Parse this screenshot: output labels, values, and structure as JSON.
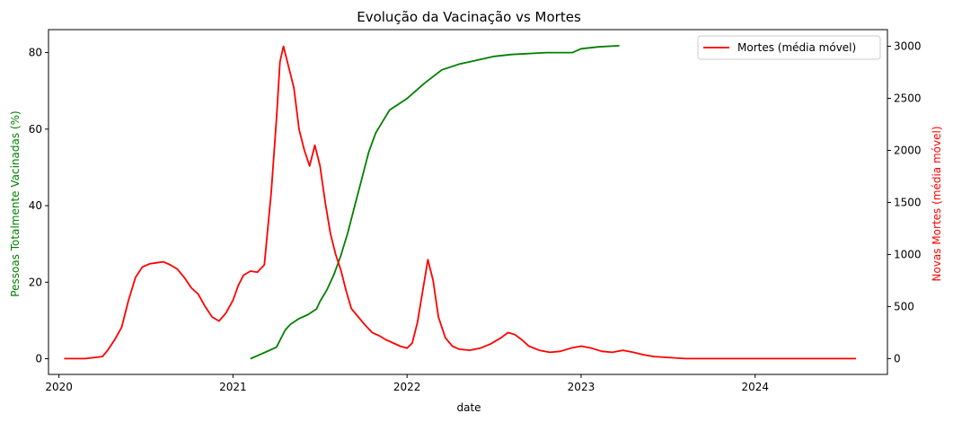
{
  "chart_data": {
    "type": "line",
    "title": "Evolução da Vacinação vs Mortes",
    "xlabel": "date",
    "ylabel_left": "Pessoas Totalmente Vacinadas (%)",
    "ylabel_right": "Novas Mortes (média móvel)",
    "xlim": [
      2019.94,
      2024.76
    ],
    "ylim_left": [
      -4.1,
      86
    ],
    "ylim_right": [
      -152,
      3160
    ],
    "x_ticks": [
      2020,
      2021,
      2022,
      2023,
      2024
    ],
    "x_tick_labels": [
      "2020",
      "2021",
      "2022",
      "2023",
      "2024"
    ],
    "y_left_ticks": [
      0,
      20,
      40,
      60,
      80
    ],
    "y_right_ticks": [
      0,
      500,
      1000,
      1500,
      2000,
      2500,
      3000
    ],
    "grid": false,
    "legend": {
      "position": "top-right",
      "entries": [
        "Mortes (média móvel)"
      ]
    },
    "series": [
      {
        "name": "Pessoas Totalmente Vacinadas (%)",
        "axis": "left",
        "color": "#008000",
        "x": [
          2021.1,
          2021.15,
          2021.2,
          2021.25,
          2021.3,
          2021.33,
          2021.38,
          2021.43,
          2021.48,
          2021.5,
          2021.54,
          2021.58,
          2021.62,
          2021.66,
          2021.7,
          2021.74,
          2021.78,
          2021.82,
          2021.86,
          2021.9,
          2021.95,
          2022.0,
          2022.05,
          2022.1,
          2022.2,
          2022.3,
          2022.4,
          2022.5,
          2022.6,
          2022.8,
          2022.95,
          2023.0,
          2023.1,
          2023.22
        ],
        "y": [
          0,
          1,
          2,
          3,
          7.5,
          9,
          10.5,
          11.5,
          13,
          15,
          18,
          22,
          27,
          33,
          40,
          47,
          54,
          59,
          62,
          65,
          66.5,
          68,
          70,
          72,
          75.5,
          77,
          78,
          79,
          79.5,
          80,
          80,
          81,
          81.5,
          81.8
        ]
      },
      {
        "name": "Mortes (média móvel)",
        "axis": "right",
        "color": "#ff0000",
        "x": [
          2020.03,
          2020.15,
          2020.25,
          2020.28,
          2020.32,
          2020.36,
          2020.4,
          2020.44,
          2020.48,
          2020.52,
          2020.56,
          2020.6,
          2020.64,
          2020.68,
          2020.72,
          2020.76,
          2020.8,
          2020.84,
          2020.88,
          2020.92,
          2020.96,
          2021.0,
          2021.03,
          2021.06,
          2021.1,
          2021.14,
          2021.18,
          2021.22,
          2021.25,
          2021.27,
          2021.29,
          2021.32,
          2021.35,
          2021.38,
          2021.41,
          2021.44,
          2021.47,
          2021.5,
          2021.53,
          2021.56,
          2021.59,
          2021.62,
          2021.65,
          2021.68,
          2021.72,
          2021.76,
          2021.8,
          2021.84,
          2021.88,
          2021.92,
          2021.96,
          2022.0,
          2022.03,
          2022.06,
          2022.09,
          2022.12,
          2022.15,
          2022.18,
          2022.22,
          2022.26,
          2022.3,
          2022.36,
          2022.42,
          2022.48,
          2022.54,
          2022.58,
          2022.62,
          2022.66,
          2022.7,
          2022.76,
          2022.82,
          2022.88,
          2022.94,
          2023.0,
          2023.06,
          2023.12,
          2023.18,
          2023.24,
          2023.3,
          2023.35,
          2023.38,
          2023.42,
          2023.6,
          2023.9,
          2024.2,
          2024.58
        ],
        "y": [
          0,
          0,
          20,
          80,
          180,
          300,
          560,
          780,
          880,
          910,
          920,
          930,
          900,
          860,
          780,
          680,
          620,
          500,
          400,
          360,
          440,
          560,
          700,
          800,
          840,
          830,
          900,
          1600,
          2300,
          2850,
          3000,
          2800,
          2600,
          2200,
          2000,
          1850,
          2050,
          1850,
          1500,
          1200,
          1000,
          850,
          650,
          480,
          400,
          320,
          250,
          220,
          180,
          150,
          120,
          100,
          150,
          350,
          650,
          950,
          750,
          400,
          200,
          120,
          90,
          80,
          100,
          140,
          200,
          250,
          230,
          180,
          120,
          80,
          60,
          70,
          100,
          120,
          100,
          70,
          60,
          80,
          60,
          40,
          30,
          20,
          0,
          0,
          0,
          0
        ]
      }
    ]
  }
}
